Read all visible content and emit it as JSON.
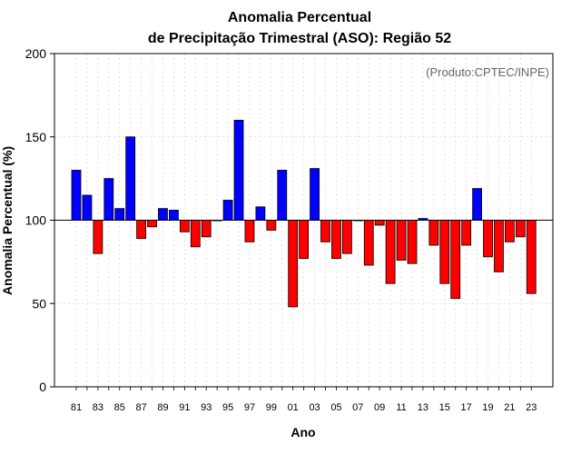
{
  "chart_data": {
    "type": "bar",
    "title_line1": "Anomalia Percentual",
    "title_line2": "de Precipitação Trimestral (ASO): Região 52",
    "credit": "(Produto:CPTEC/INPE)",
    "xlabel": "Ano",
    "ylabel": "Anomalia Percentual (%)",
    "ylim": [
      0,
      200
    ],
    "yticks": [
      "0",
      "50",
      "100",
      "150",
      "200"
    ],
    "baseline": 100,
    "grid": true,
    "colors": {
      "above": "#0000ff",
      "below": "#ff0000",
      "baseline": "#000000"
    },
    "years": [
      "81",
      "82",
      "83",
      "84",
      "85",
      "86",
      "87",
      "88",
      "89",
      "90",
      "91",
      "92",
      "93",
      "94",
      "95",
      "96",
      "97",
      "98",
      "99",
      "00",
      "01",
      "02",
      "03",
      "04",
      "05",
      "06",
      "07",
      "08",
      "09",
      "10",
      "11",
      "12",
      "13",
      "14",
      "15",
      "16",
      "17",
      "18",
      "19",
      "20",
      "21",
      "22",
      "23"
    ],
    "xtick_labels": [
      "81",
      "83",
      "85",
      "87",
      "89",
      "91",
      "93",
      "95",
      "97",
      "99",
      "01",
      "03",
      "05",
      "07",
      "09",
      "11",
      "13",
      "15",
      "17",
      "19",
      "21",
      "23"
    ],
    "values": [
      130,
      115,
      80,
      125,
      107,
      150,
      89,
      96,
      107,
      106,
      93,
      84,
      90,
      100,
      112,
      160,
      87,
      108,
      94,
      130,
      48,
      77,
      131,
      87,
      77,
      80,
      100,
      73,
      97,
      62,
      76,
      74,
      101,
      85,
      62,
      53,
      85,
      119,
      78,
      69,
      87,
      90,
      56
    ]
  }
}
